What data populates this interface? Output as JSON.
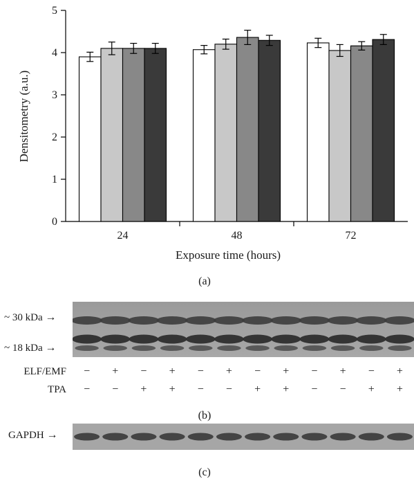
{
  "chart_data": {
    "type": "bar",
    "categories": [
      "24",
      "48",
      "72"
    ],
    "series": [
      {
        "values": [
          3.9,
          4.07,
          4.23
        ],
        "errors": [
          0.11,
          0.1,
          0.11
        ],
        "color": "#ffffff"
      },
      {
        "values": [
          4.1,
          4.2,
          4.05
        ],
        "errors": [
          0.15,
          0.12,
          0.14
        ],
        "color": "#c8c8c8"
      },
      {
        "values": [
          4.1,
          4.36,
          4.16
        ],
        "errors": [
          0.12,
          0.17,
          0.1
        ],
        "color": "#888888"
      },
      {
        "values": [
          4.1,
          4.29,
          4.31
        ],
        "errors": [
          0.12,
          0.12,
          0.12
        ],
        "color": "#3a3a3a"
      }
    ],
    "ylabel": "Densitometry (a.u.)",
    "xlabel": "Exposure time (hours)",
    "ylim": [
      0,
      5
    ],
    "yticks": [
      0,
      1,
      2,
      3,
      4,
      5
    ],
    "grid": false
  },
  "panels": {
    "a_label": "(a)",
    "b_label": "(b)",
    "c_label": "(c)"
  },
  "blot_b": {
    "marker_30": "~ 30 kDa",
    "marker_18": "~ 18 kDa",
    "arrow": "→",
    "elf_label": "ELF/EMF",
    "tpa_label": "TPA",
    "elf_signs": [
      "−",
      "+",
      "−",
      "+",
      "−",
      "+",
      "−",
      "+",
      "−",
      "+",
      "−",
      "+"
    ],
    "tpa_signs": [
      "−",
      "−",
      "+",
      "+",
      "−",
      "−",
      "+",
      "+",
      "−",
      "−",
      "+",
      "+"
    ]
  },
  "blot_c": {
    "gapdh_label": "GAPDH",
    "arrow": "→"
  }
}
